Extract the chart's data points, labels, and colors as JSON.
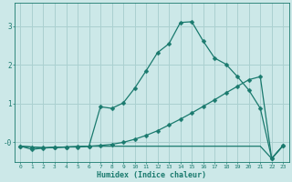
{
  "xlabel": "Humidex (Indice chaleur)",
  "bg_color": "#cce8e8",
  "grid_color": "#aad0d0",
  "line_color": "#1a7a6e",
  "x_ticks": [
    0,
    1,
    2,
    3,
    4,
    5,
    6,
    7,
    8,
    9,
    10,
    11,
    12,
    13,
    14,
    15,
    16,
    17,
    18,
    19,
    20,
    21,
    22,
    23
  ],
  "ylim": [
    -0.5,
    3.6
  ],
  "xlim": [
    -0.5,
    23.5
  ],
  "line1_x": [
    0,
    1,
    2,
    3,
    4,
    5,
    6,
    7,
    8,
    9,
    10,
    11,
    12,
    13,
    14,
    15,
    16,
    17,
    18,
    19,
    20,
    21,
    22,
    23
  ],
  "line1_y": [
    -0.1,
    -0.18,
    -0.15,
    -0.13,
    -0.12,
    -0.12,
    -0.1,
    0.92,
    0.88,
    1.02,
    1.4,
    1.85,
    2.32,
    2.55,
    3.1,
    3.12,
    2.62,
    2.18,
    2.02,
    1.7,
    1.35,
    0.88,
    -0.42,
    -0.08
  ],
  "line2_x": [
    0,
    1,
    2,
    3,
    4,
    5,
    6,
    7,
    8,
    9,
    10,
    11,
    12,
    13,
    14,
    15,
    16,
    17,
    18,
    19,
    20,
    21,
    22,
    23
  ],
  "line2_y": [
    -0.1,
    -0.12,
    -0.14,
    -0.13,
    -0.12,
    -0.11,
    -0.1,
    -0.08,
    -0.05,
    0.0,
    0.08,
    0.18,
    0.3,
    0.45,
    0.6,
    0.76,
    0.93,
    1.1,
    1.28,
    1.45,
    1.62,
    1.7,
    -0.42,
    -0.08
  ],
  "line3_x": [
    0,
    1,
    2,
    3,
    4,
    5,
    6,
    7,
    8,
    9,
    10,
    11,
    12,
    13,
    14,
    15,
    16,
    17,
    18,
    19,
    20,
    21,
    22,
    23
  ],
  "line3_y": [
    -0.1,
    -0.12,
    -0.14,
    -0.13,
    -0.12,
    -0.11,
    -0.1,
    -0.1,
    -0.1,
    -0.1,
    -0.1,
    -0.1,
    -0.1,
    -0.1,
    -0.1,
    -0.1,
    -0.1,
    -0.1,
    -0.1,
    -0.1,
    -0.1,
    -0.1,
    -0.42,
    -0.08
  ]
}
